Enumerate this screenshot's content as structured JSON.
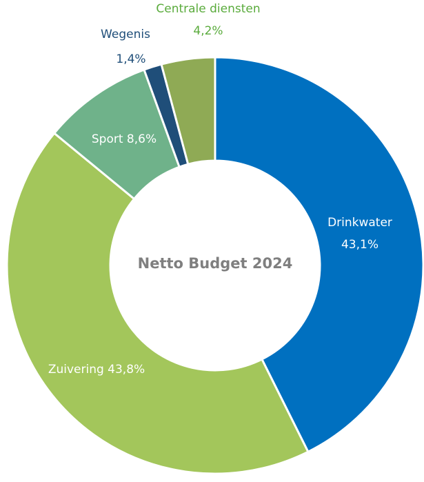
{
  "chart_data": {
    "type": "donut",
    "title": "Netto Budget 2024",
    "categories": [
      "Drinkwater",
      "Zuivering",
      "Sport",
      "Wegenis",
      "Centrale diensten"
    ],
    "values": [
      43.1,
      43.8,
      8.6,
      1.4,
      4.2
    ],
    "value_labels": [
      "43,1%",
      "43,8%",
      "8,6%",
      "1,4%",
      "4,2%"
    ],
    "colors": [
      "#0070c0",
      "#a3c65b",
      "#6fb28a",
      "#1f4e79",
      "#8faa55"
    ]
  }
}
